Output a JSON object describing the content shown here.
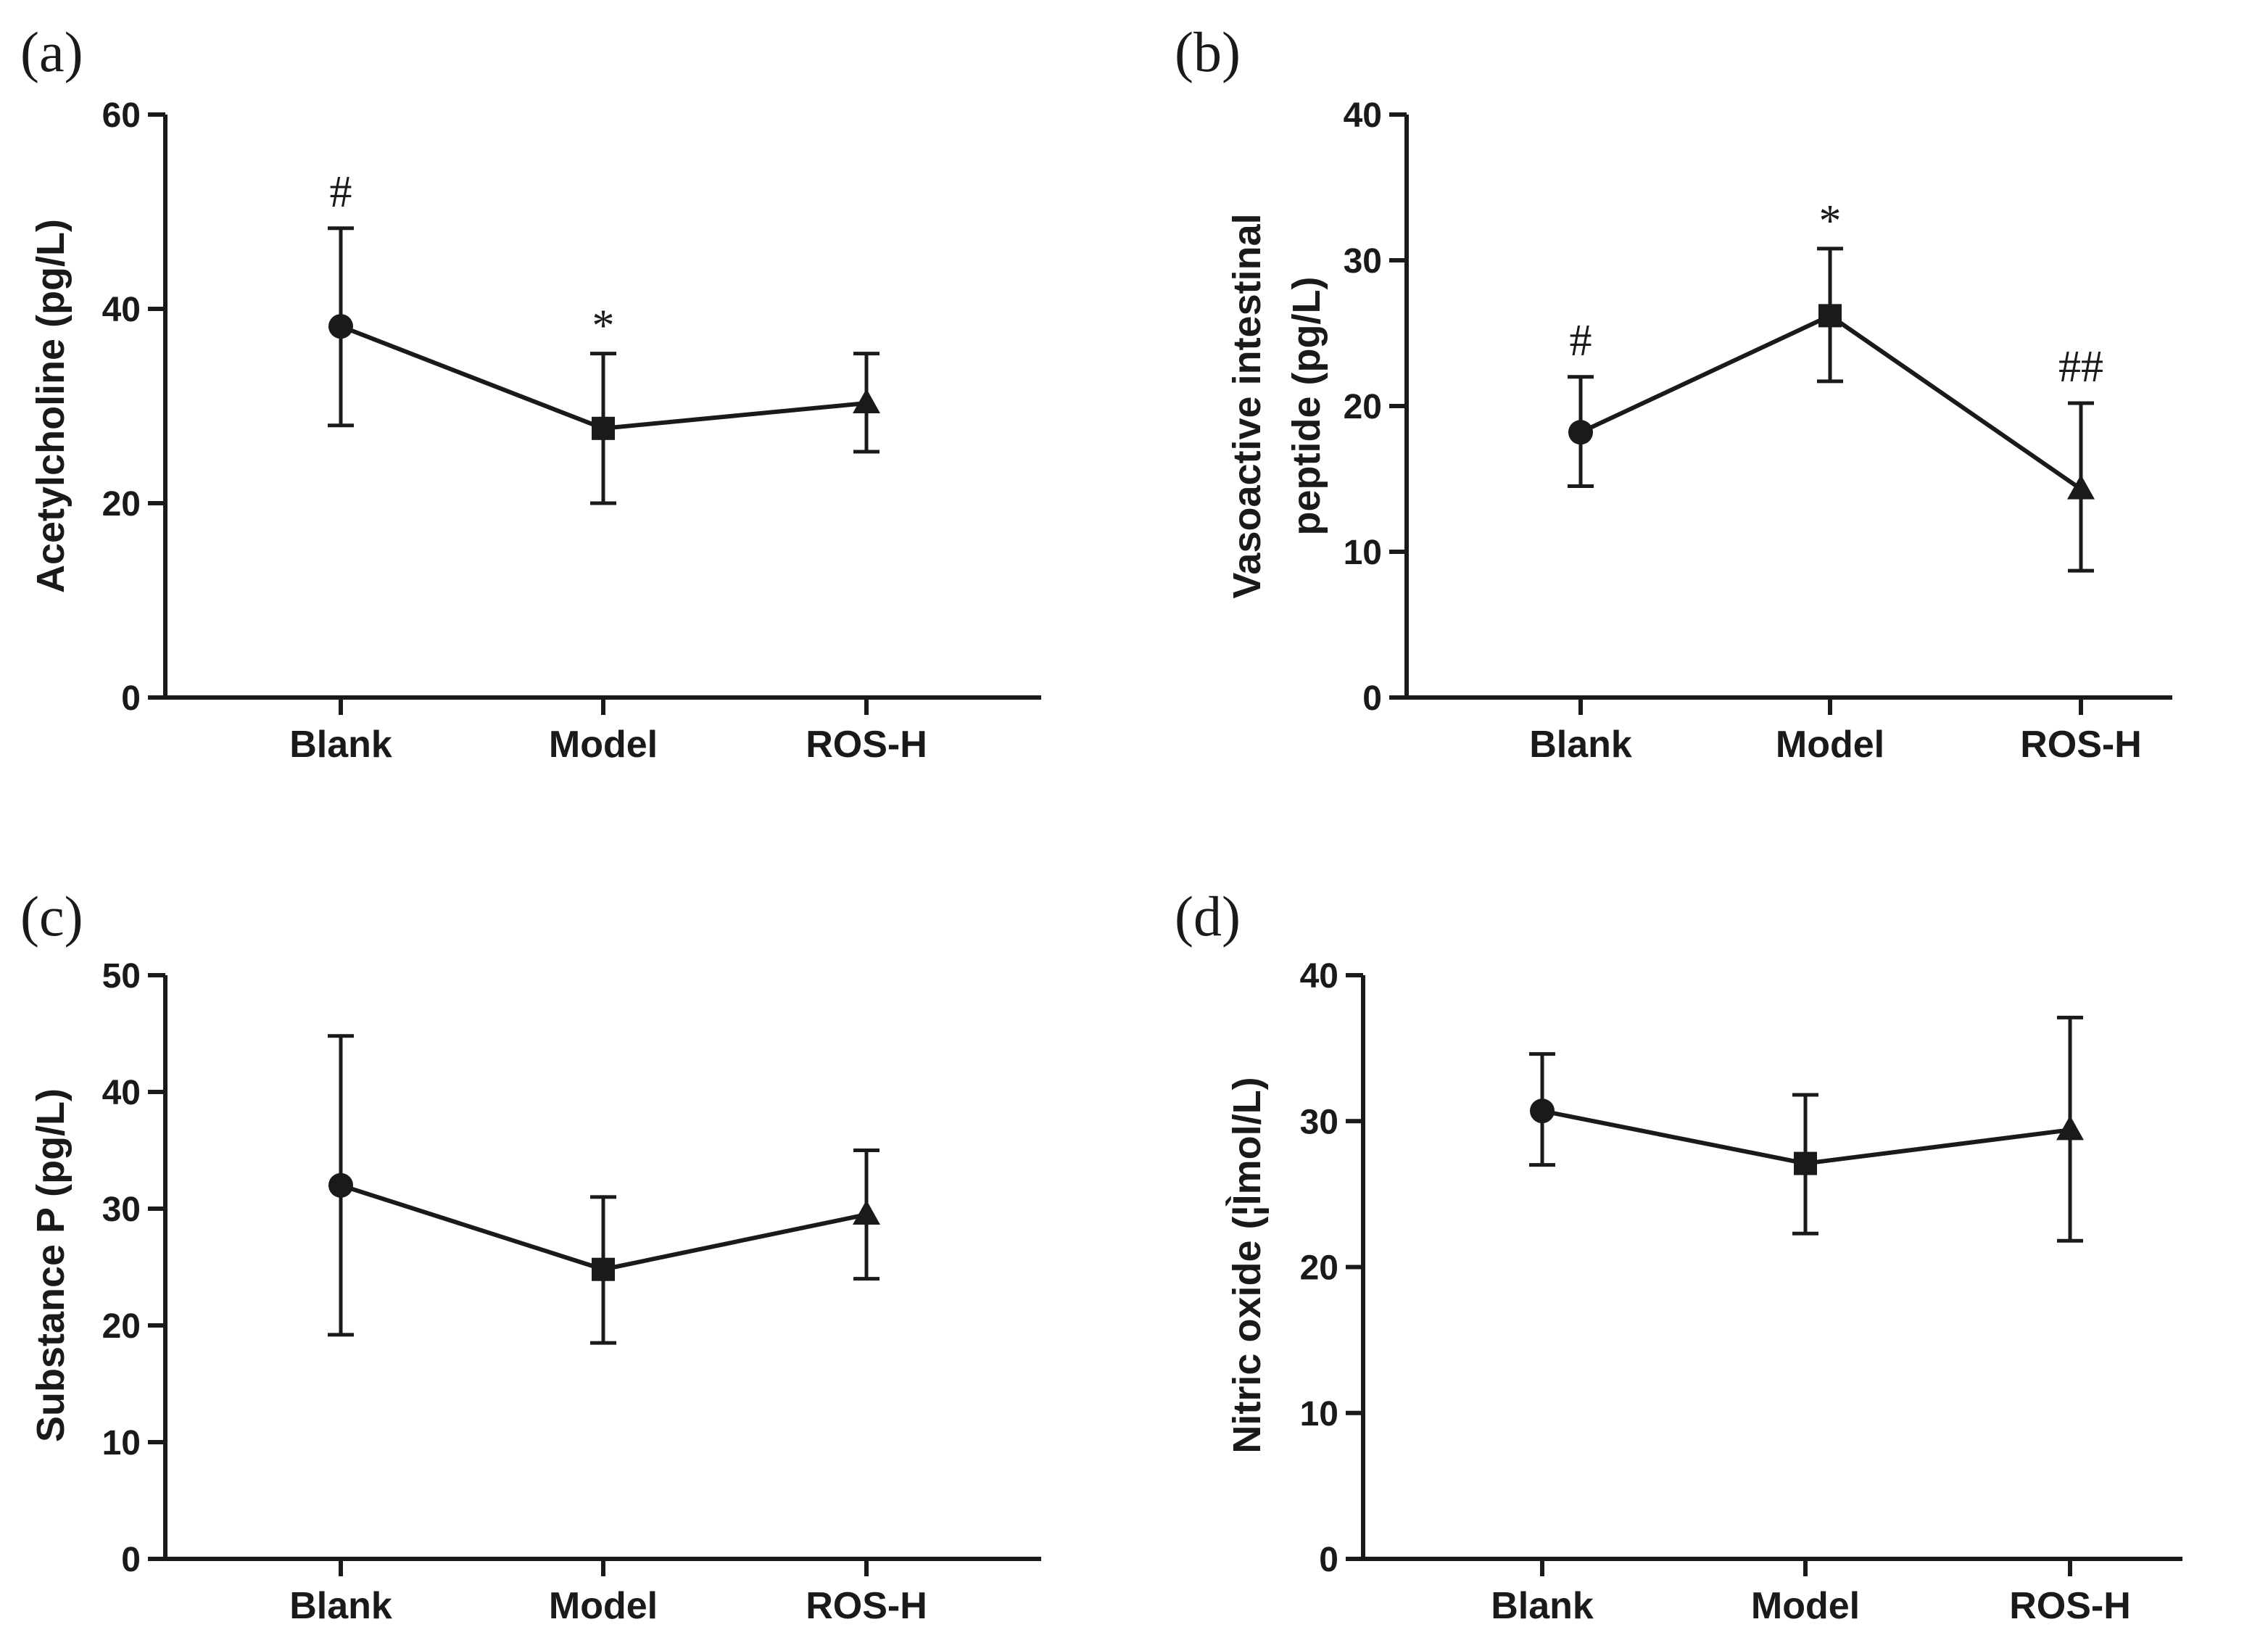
{
  "chart_data": [
    {
      "type": "line",
      "panel": "(a)",
      "title": "",
      "xlabel": "",
      "ylabel": "Acetylcholine (pg/L)",
      "ylim": [
        0,
        60
      ],
      "yticks": [
        0,
        20,
        40,
        60
      ],
      "categories": [
        "Blank",
        "Model",
        "ROS-H"
      ],
      "series": [
        {
          "name": "Acetylcholine",
          "marker": "mixed",
          "values": [
            38.2,
            27.7,
            30.3
          ],
          "error_upper": [
            48.3,
            35.4,
            35.4
          ],
          "error_lower": [
            28.0,
            20.0,
            25.3
          ]
        }
      ],
      "annotations": [
        "#",
        "*",
        ""
      ],
      "markers": [
        "circle",
        "square",
        "triangle"
      ]
    },
    {
      "type": "line",
      "panel": "(b)",
      "title": "",
      "xlabel": "",
      "ylabel_lines": [
        "Vasoactive intestinal",
        "peptide (pg/L)"
      ],
      "ylim": [
        0,
        40
      ],
      "yticks": [
        0,
        10,
        20,
        30,
        40
      ],
      "categories": [
        "Blank",
        "Model",
        "ROS-H"
      ],
      "series": [
        {
          "name": "Vasoactive intestinal peptide",
          "values": [
            18.2,
            26.2,
            14.3
          ],
          "error_upper": [
            22.0,
            30.8,
            20.2
          ],
          "error_lower": [
            14.5,
            21.7,
            8.7
          ]
        }
      ],
      "annotations": [
        "#",
        "*",
        "##"
      ],
      "markers": [
        "circle",
        "square",
        "triangle"
      ]
    },
    {
      "type": "line",
      "panel": "(c)",
      "title": "",
      "xlabel": "",
      "ylabel": "Substance P (pg/L)",
      "ylim": [
        0,
        50
      ],
      "yticks": [
        0,
        10,
        20,
        30,
        40,
        50
      ],
      "categories": [
        "Blank",
        "Model",
        "ROS-H"
      ],
      "series": [
        {
          "name": "Substance P",
          "values": [
            32.0,
            24.8,
            29.5
          ],
          "error_upper": [
            44.8,
            31.0,
            35.0
          ],
          "error_lower": [
            19.2,
            18.5,
            24.0
          ]
        }
      ],
      "annotations": [
        "",
        "",
        ""
      ],
      "markers": [
        "circle",
        "square",
        "triangle"
      ]
    },
    {
      "type": "line",
      "panel": "(d)",
      "title": "",
      "xlabel": "",
      "ylabel": "Nitric oxide (¦Ìmol/L)",
      "ylim": [
        0,
        40
      ],
      "yticks": [
        0,
        10,
        20,
        30,
        40
      ],
      "categories": [
        "Blank",
        "Model",
        "ROS-H"
      ],
      "series": [
        {
          "name": "Nitric oxide",
          "values": [
            30.7,
            27.1,
            29.4
          ],
          "error_upper": [
            34.6,
            31.8,
            37.1
          ],
          "error_lower": [
            27.0,
            22.3,
            21.8
          ]
        }
      ],
      "annotations": [
        "",
        "",
        ""
      ],
      "markers": [
        "circle",
        "square",
        "triangle"
      ]
    }
  ]
}
